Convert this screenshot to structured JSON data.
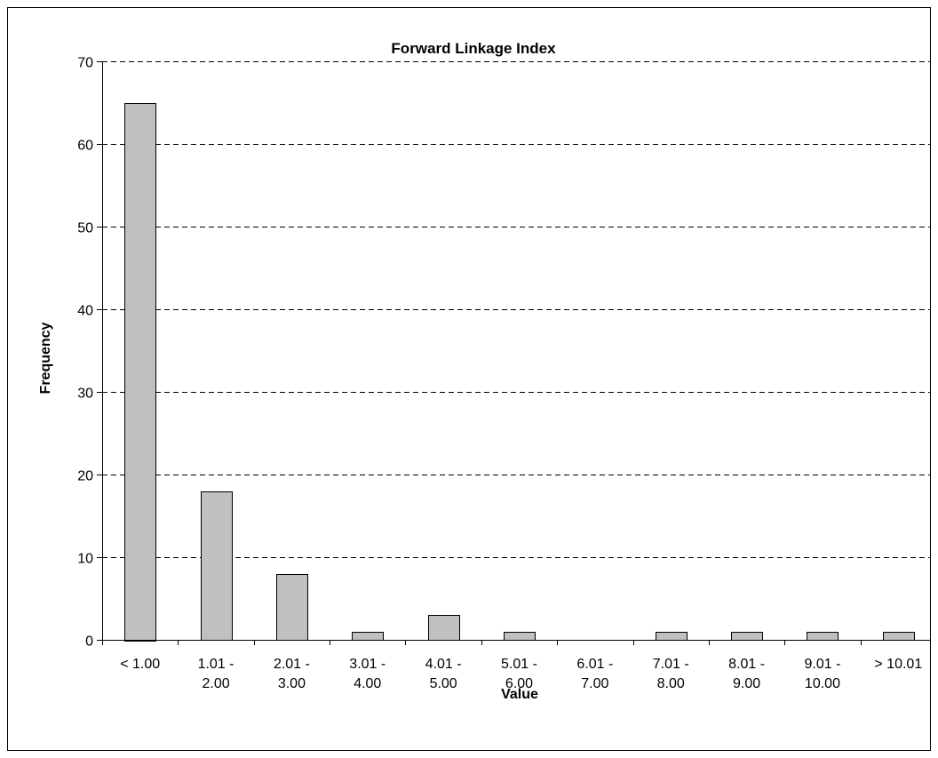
{
  "chart_data": {
    "type": "bar",
    "title": "Forward Linkage Index",
    "xlabel": "Value",
    "ylabel": "Frequency",
    "categories": [
      [
        "< 1.00"
      ],
      [
        "1.01 -",
        "2.00"
      ],
      [
        "2.01 -",
        "3.00"
      ],
      [
        "3.01 -",
        "4.00"
      ],
      [
        "4.01 -",
        "5.00"
      ],
      [
        "5.01 -",
        "6.00"
      ],
      [
        "6.01 -",
        "7.00"
      ],
      [
        "7.01 -",
        "8.00"
      ],
      [
        "8.01 -",
        "9.00"
      ],
      [
        "9.01 -",
        "10.00"
      ],
      [
        "> 10.01"
      ]
    ],
    "values": [
      65,
      18,
      8,
      1,
      3,
      1,
      0,
      1,
      1,
      1,
      1
    ],
    "ylim": [
      0,
      70
    ],
    "yticks": [
      0,
      10,
      20,
      30,
      40,
      50,
      60,
      70
    ],
    "grid": "horizontal-dashed",
    "legend": "none",
    "colors": {
      "bar_fill": "#C0C0C0",
      "bar_stroke": "#000000",
      "grid": "#000000"
    }
  }
}
